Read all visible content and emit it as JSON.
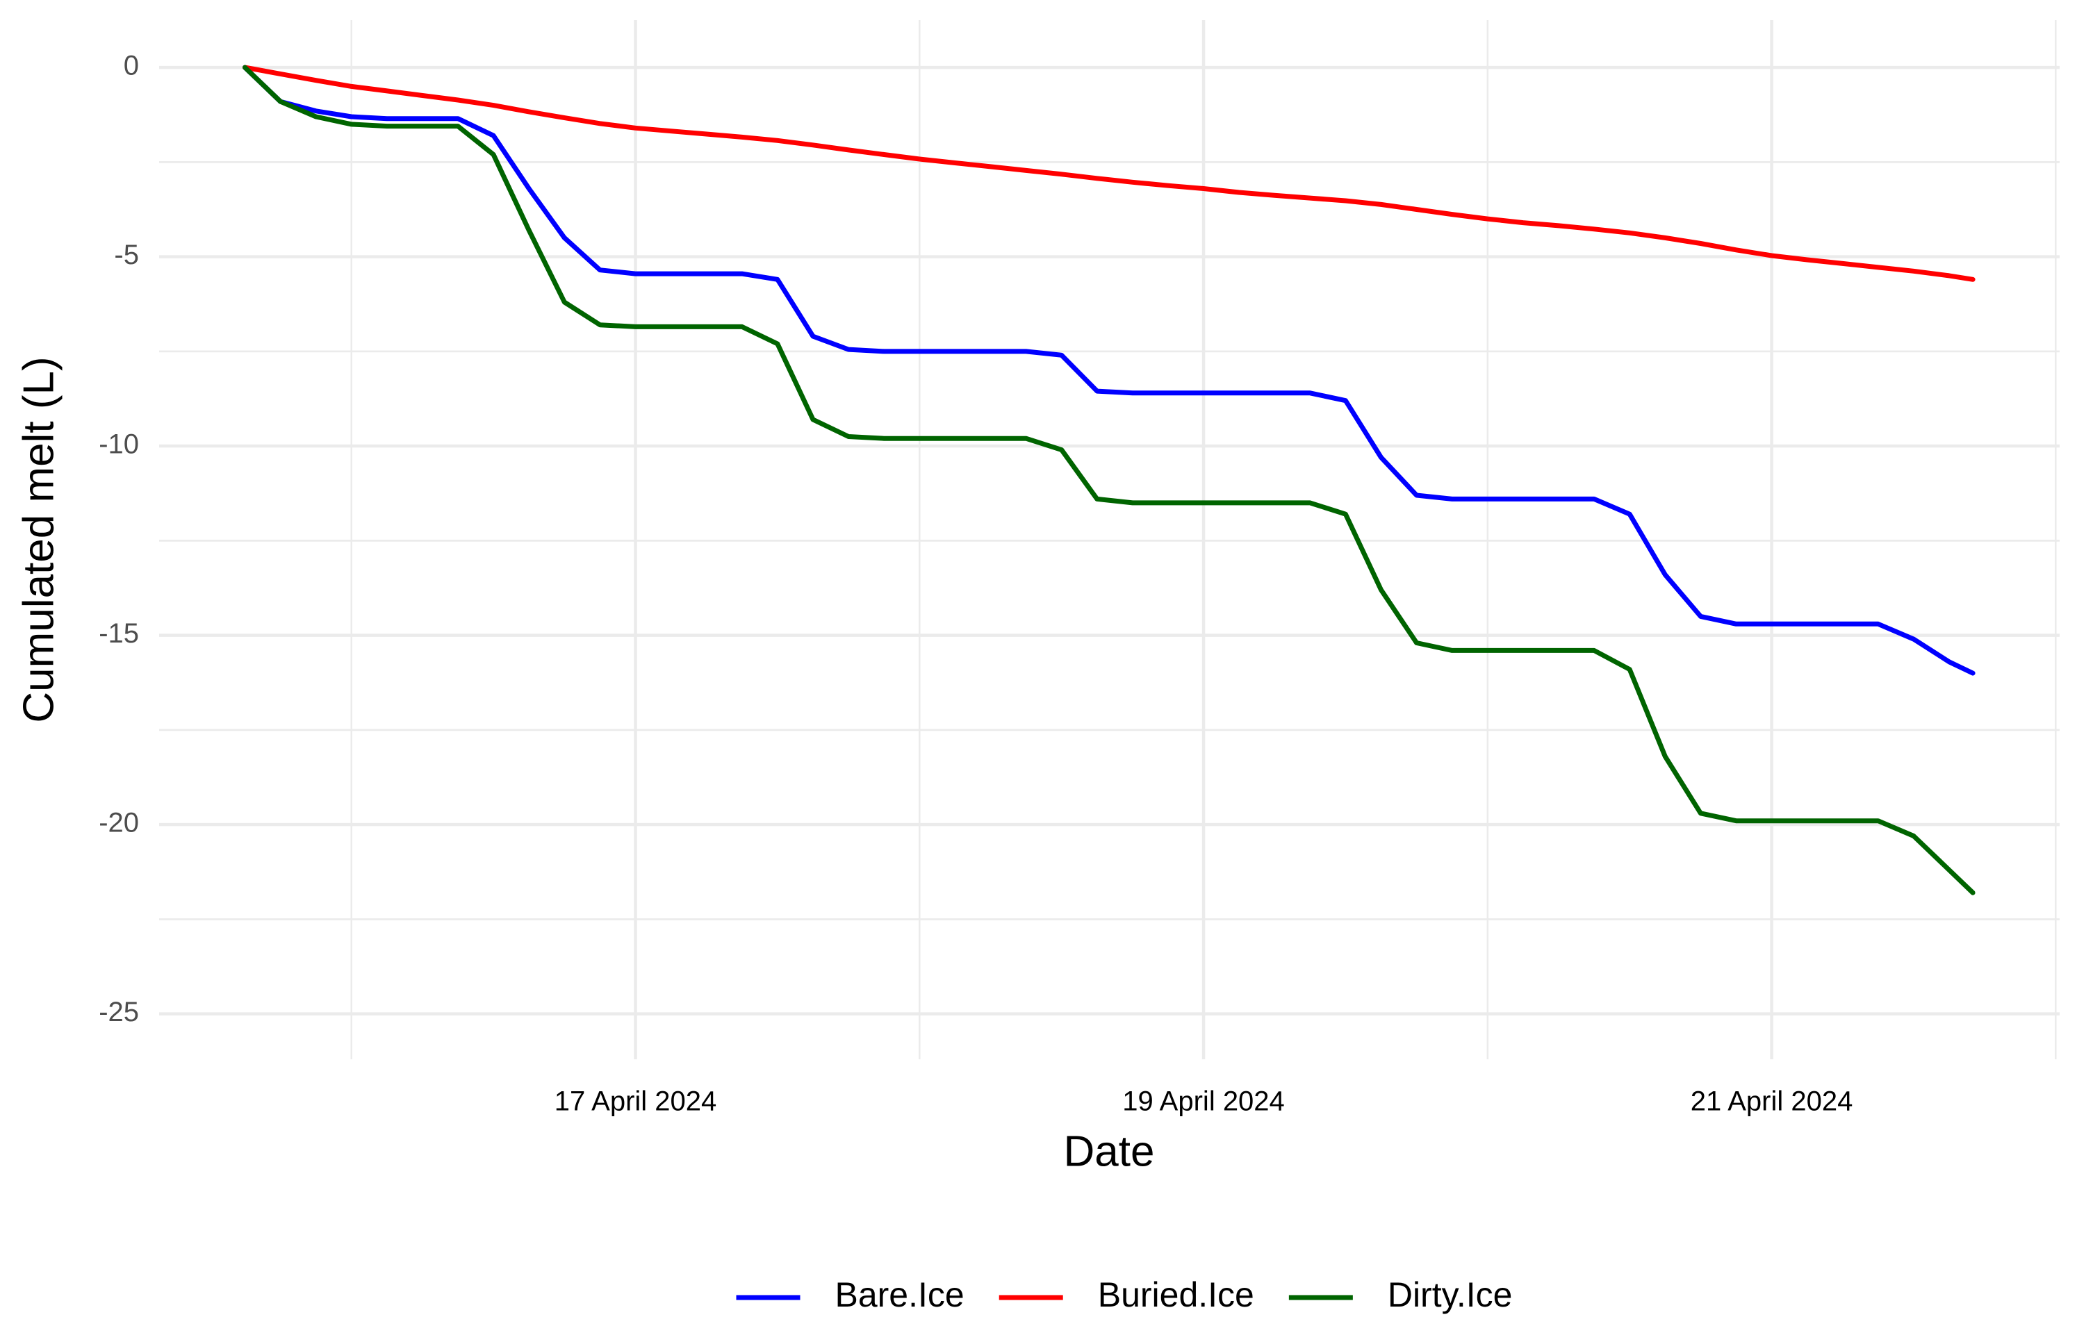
{
  "chart_data": {
    "type": "line",
    "x_label": "Date",
    "y_label": "Cumulated melt (L)",
    "x": [
      "2024-04-15T15:00",
      "2024-04-15T18:00",
      "2024-04-15T21:00",
      "2024-04-16T00:00",
      "2024-04-16T03:00",
      "2024-04-16T06:00",
      "2024-04-16T09:00",
      "2024-04-16T12:00",
      "2024-04-16T15:00",
      "2024-04-16T18:00",
      "2024-04-16T21:00",
      "2024-04-17T00:00",
      "2024-04-17T03:00",
      "2024-04-17T06:00",
      "2024-04-17T09:00",
      "2024-04-17T12:00",
      "2024-04-17T15:00",
      "2024-04-17T18:00",
      "2024-04-17T21:00",
      "2024-04-18T00:00",
      "2024-04-18T03:00",
      "2024-04-18T06:00",
      "2024-04-18T09:00",
      "2024-04-18T12:00",
      "2024-04-18T15:00",
      "2024-04-18T18:00",
      "2024-04-18T21:00",
      "2024-04-19T00:00",
      "2024-04-19T03:00",
      "2024-04-19T06:00",
      "2024-04-19T09:00",
      "2024-04-19T12:00",
      "2024-04-19T15:00",
      "2024-04-19T18:00",
      "2024-04-19T21:00",
      "2024-04-20T00:00",
      "2024-04-20T03:00",
      "2024-04-20T06:00",
      "2024-04-20T09:00",
      "2024-04-20T12:00",
      "2024-04-20T15:00",
      "2024-04-20T18:00",
      "2024-04-20T21:00",
      "2024-04-21T00:00",
      "2024-04-21T03:00",
      "2024-04-21T06:00",
      "2024-04-21T09:00",
      "2024-04-21T12:00",
      "2024-04-21T15:00",
      "2024-04-21T17:00"
    ],
    "series": [
      {
        "name": "Bare.Ice",
        "color": "#0000ff",
        "values": [
          0,
          -0.9,
          -1.15,
          -1.3,
          -1.35,
          -1.35,
          -1.35,
          -1.8,
          -3.2,
          -4.5,
          -5.35,
          -5.45,
          -5.45,
          -5.45,
          -5.45,
          -5.6,
          -7.1,
          -7.45,
          -7.5,
          -7.5,
          -7.5,
          -7.5,
          -7.5,
          -7.6,
          -8.55,
          -8.6,
          -8.6,
          -8.6,
          -8.6,
          -8.6,
          -8.6,
          -8.8,
          -10.3,
          -11.3,
          -11.4,
          -11.4,
          -11.4,
          -11.4,
          -11.4,
          -11.8,
          -13.4,
          -14.5,
          -14.7,
          -14.7,
          -14.7,
          -14.7,
          -14.7,
          -15.1,
          -15.7,
          -16.0
        ]
      },
      {
        "name": "Buried.Ice",
        "color": "#ff0000",
        "values": [
          0,
          -0.17,
          -0.34,
          -0.5,
          -0.62,
          -0.74,
          -0.86,
          -1.0,
          -1.17,
          -1.33,
          -1.48,
          -1.6,
          -1.68,
          -1.76,
          -1.84,
          -1.93,
          -2.05,
          -2.18,
          -2.3,
          -2.42,
          -2.52,
          -2.62,
          -2.72,
          -2.82,
          -2.93,
          -3.03,
          -3.12,
          -3.2,
          -3.3,
          -3.38,
          -3.45,
          -3.52,
          -3.62,
          -3.75,
          -3.88,
          -4.0,
          -4.1,
          -4.18,
          -4.27,
          -4.37,
          -4.5,
          -4.65,
          -4.82,
          -4.97,
          -5.08,
          -5.18,
          -5.28,
          -5.38,
          -5.5,
          -5.6
        ]
      },
      {
        "name": "Dirty.Ice",
        "color": "#006400",
        "values": [
          0,
          -0.9,
          -1.3,
          -1.5,
          -1.55,
          -1.55,
          -1.55,
          -2.3,
          -4.3,
          -6.2,
          -6.8,
          -6.85,
          -6.85,
          -6.85,
          -6.85,
          -7.3,
          -9.3,
          -9.75,
          -9.8,
          -9.8,
          -9.8,
          -9.8,
          -9.8,
          -10.1,
          -11.4,
          -11.5,
          -11.5,
          -11.5,
          -11.5,
          -11.5,
          -11.5,
          -11.8,
          -13.8,
          -15.2,
          -15.4,
          -15.4,
          -15.4,
          -15.4,
          -15.4,
          -15.9,
          -18.2,
          -19.7,
          -19.9,
          -19.9,
          -19.9,
          -19.9,
          -19.9,
          -20.3,
          -21.2,
          -21.8
        ]
      }
    ],
    "xlim": [
      "2024-04-15T07:45",
      "2024-04-22T00:20"
    ],
    "xticks": [
      {
        "value": "2024-04-17T00:00",
        "label": "17 April 2024"
      },
      {
        "value": "2024-04-19T00:00",
        "label": "19 April 2024"
      },
      {
        "value": "2024-04-21T00:00",
        "label": "21 April 2024"
      }
    ],
    "ylim": [
      -26.2,
      1.25
    ],
    "yticks": [
      0,
      -5,
      -10,
      -15,
      -20,
      -25
    ],
    "grid": true,
    "legend_position": "bottom"
  }
}
